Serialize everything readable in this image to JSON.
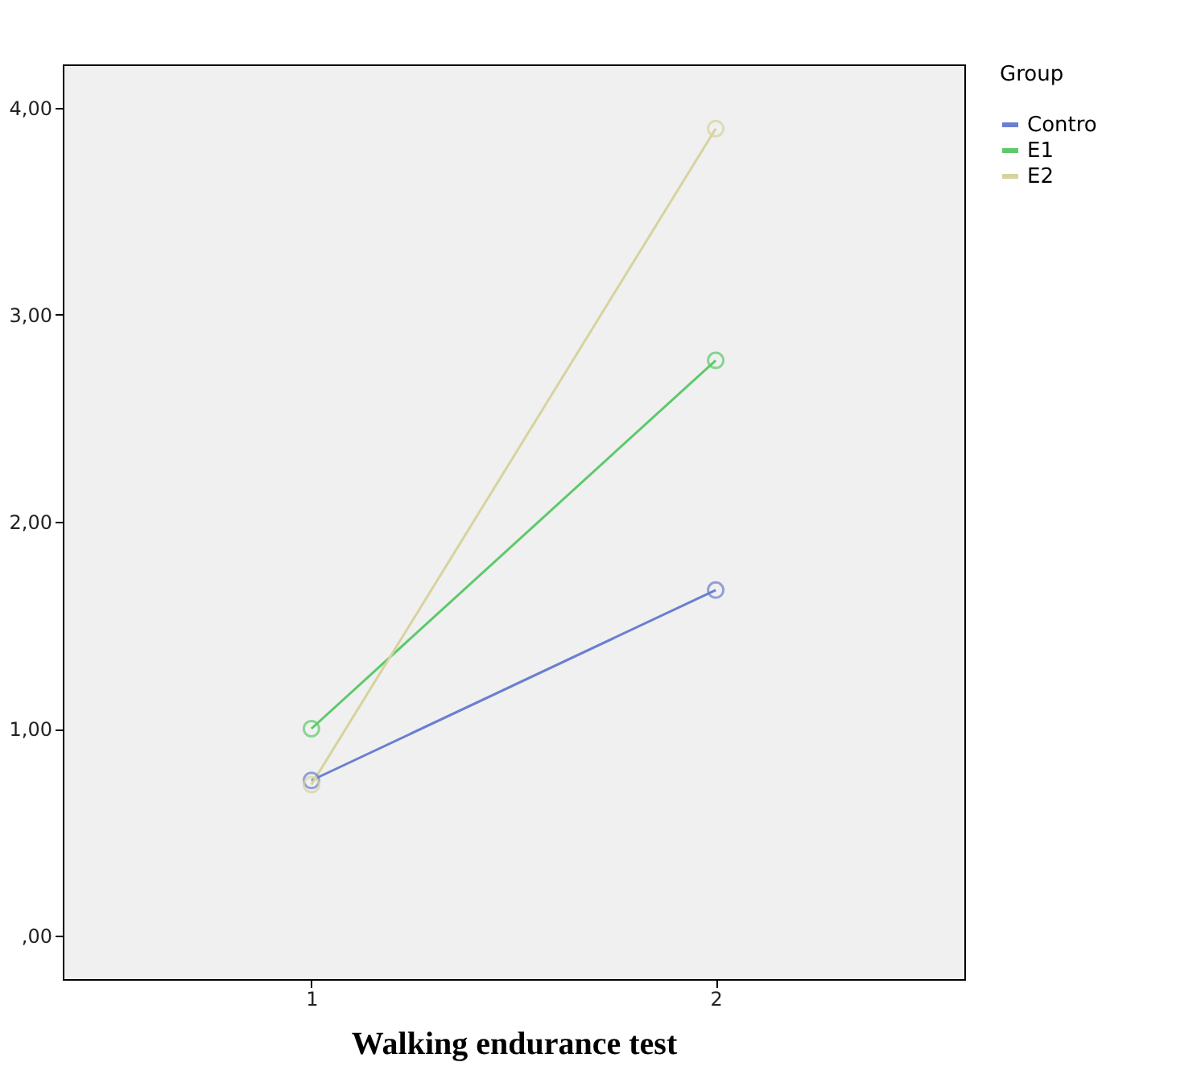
{
  "chart_data": {
    "type": "line",
    "xlabel": "Walking endurance test",
    "legend_title": "Group",
    "categories": [
      "1",
      "2"
    ],
    "series": [
      {
        "name": "Contro",
        "color": "#6a7fcf",
        "values": [
          0.75,
          1.67
        ]
      },
      {
        "name": "E1",
        "color": "#5cc96a",
        "values": [
          1.0,
          2.78
        ]
      },
      {
        "name": "E2",
        "color": "#d6d3a0",
        "values": [
          0.73,
          3.9
        ]
      }
    ],
    "ylim": [
      -0.21,
      4.21
    ],
    "yticks": [
      {
        "value": 0,
        "label": ",00"
      },
      {
        "value": 1,
        "label": "1,00"
      },
      {
        "value": 2,
        "label": "2,00"
      },
      {
        "value": 3,
        "label": "3,00"
      },
      {
        "value": 4,
        "label": "4,00"
      }
    ],
    "grid": false,
    "legend": "top right",
    "marker": "circle",
    "line_style": "solid"
  }
}
